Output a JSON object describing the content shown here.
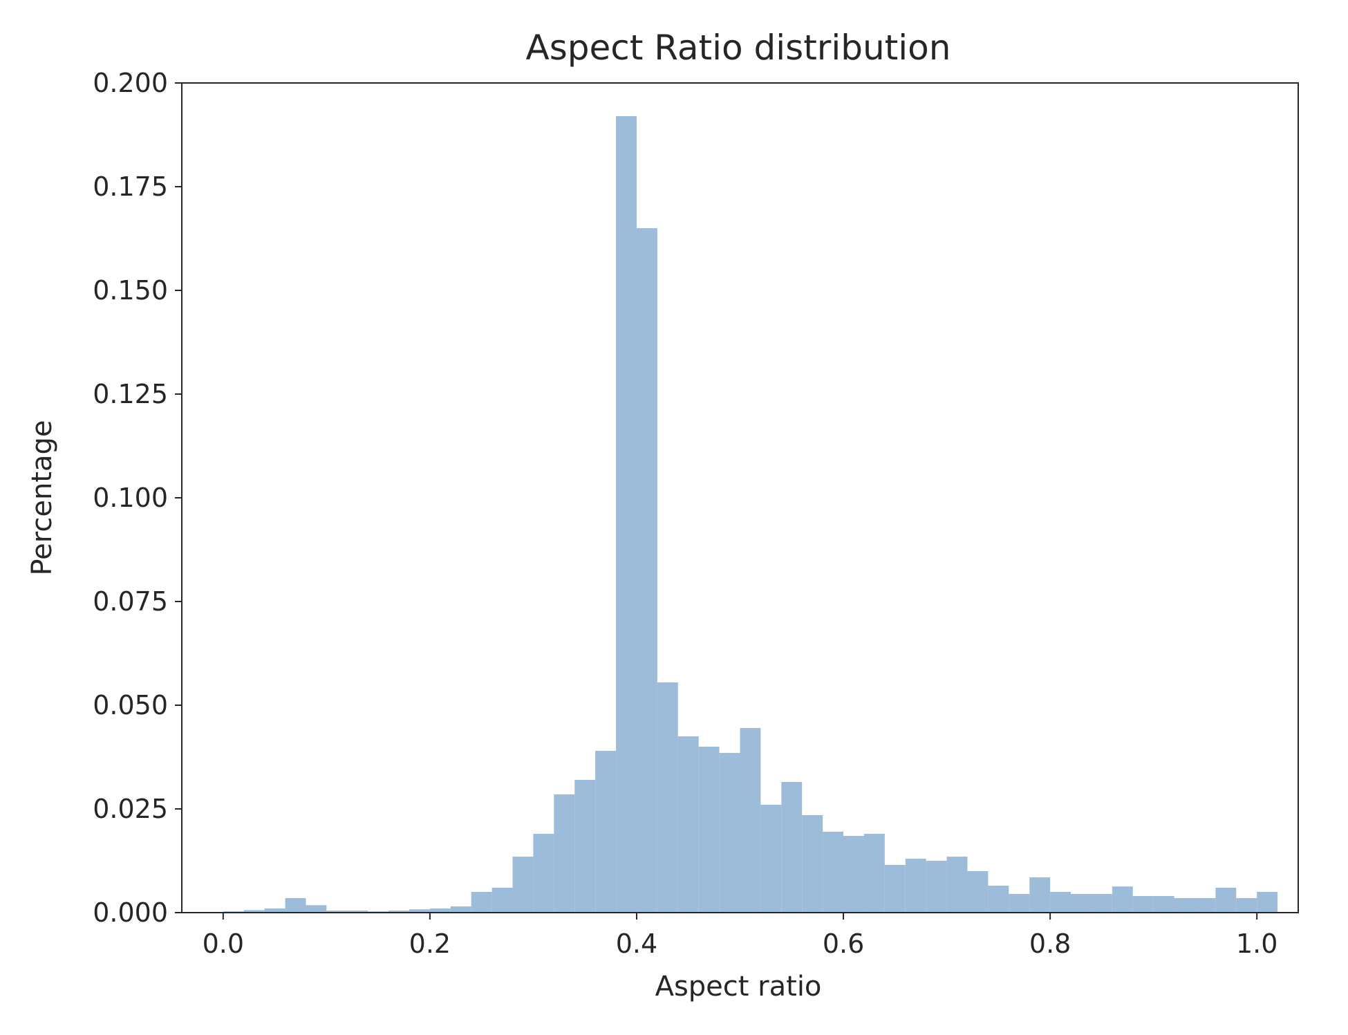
{
  "chart_data": {
    "type": "bar",
    "title": "Aspect Ratio distribution",
    "xlabel": "Aspect ratio",
    "ylabel": "Percentage",
    "xlim": [
      -0.04,
      1.04
    ],
    "ylim": [
      0,
      0.2
    ],
    "xticks": [
      "0.0",
      "0.2",
      "0.4",
      "0.6",
      "0.8",
      "1.0"
    ],
    "yticks": [
      "0.000",
      "0.025",
      "0.050",
      "0.075",
      "0.100",
      "0.125",
      "0.150",
      "0.175",
      "0.200"
    ],
    "bin_start": 0.0,
    "bin_width": 0.02,
    "values": [
      0.0003,
      0.0006,
      0.001,
      0.0035,
      0.0018,
      0.0005,
      0.0005,
      0.0003,
      0.0005,
      0.0008,
      0.001,
      0.0015,
      0.005,
      0.006,
      0.0135,
      0.019,
      0.0285,
      0.032,
      0.039,
      0.192,
      0.165,
      0.0555,
      0.0425,
      0.04,
      0.0385,
      0.0445,
      0.026,
      0.0315,
      0.0235,
      0.0195,
      0.0185,
      0.019,
      0.0115,
      0.013,
      0.0125,
      0.0135,
      0.01,
      0.0065,
      0.0045,
      0.0085,
      0.005,
      0.0045,
      0.0045,
      0.0063,
      0.004,
      0.004,
      0.0035,
      0.0035,
      0.006,
      0.0035,
      0.005
    ],
    "grid": false,
    "colors": {
      "bar": "#9dbcda",
      "axis": "#262626"
    }
  }
}
